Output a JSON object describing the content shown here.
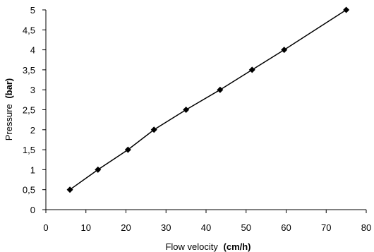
{
  "chart_data": {
    "type": "line",
    "title": "",
    "xlabel": {
      "text": "Flow velocity",
      "unit": "(cm/h)"
    },
    "ylabel": {
      "text": "Pressure",
      "unit": "(bar)"
    },
    "xlim": [
      0,
      80
    ],
    "ylim": [
      0,
      5
    ],
    "x_ticks": [
      "0",
      "10",
      "20",
      "30",
      "40",
      "50",
      "60",
      "70",
      "80"
    ],
    "y_ticks": [
      "0",
      "0,5",
      "1",
      "1,5",
      "2",
      "2,5",
      "3",
      "3,5",
      "4",
      "4,5",
      "5"
    ],
    "grid": false,
    "legend": "none",
    "marker": "diamond",
    "line_color": "#000000",
    "series": [
      {
        "x": [
          6,
          13,
          20.5,
          27,
          35,
          43.5,
          51.5,
          59.5,
          75
        ],
        "y": [
          0.5,
          1,
          1.5,
          2,
          2.5,
          3,
          3.5,
          4,
          5
        ]
      }
    ]
  }
}
